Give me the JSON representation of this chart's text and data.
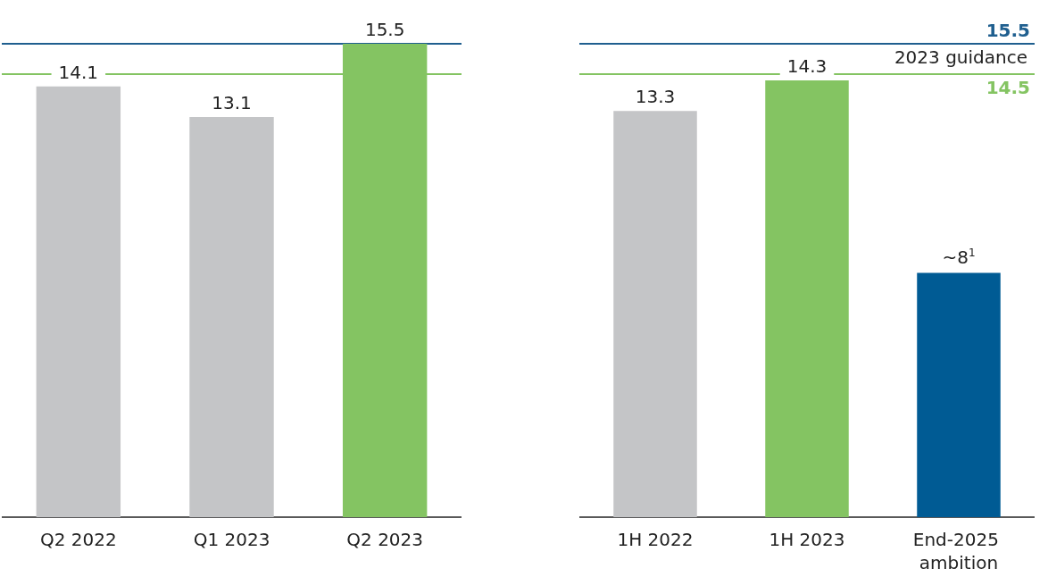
{
  "chart_data": [
    {
      "type": "bar",
      "categories": [
        "Q2 2022",
        "Q1 2023",
        "Q2 2023"
      ],
      "values": [
        14.1,
        13.1,
        15.5
      ],
      "colors": [
        "#c4c5c7",
        "#c4c5c7",
        "#84c462"
      ],
      "data_labels": true,
      "ylim": [
        0,
        15.5
      ],
      "grid": false,
      "ref_lines": [
        {
          "axis": "y",
          "value": 15.5,
          "label": null,
          "color": "#1f5f8f"
        },
        {
          "axis": "y",
          "value": 14.5,
          "label": null,
          "color": "#84c462"
        }
      ]
    },
    {
      "type": "bar",
      "categories": [
        "1H 2022",
        "1H 2023",
        "End-2025 ambition"
      ],
      "values": [
        13.3,
        14.3,
        8
      ],
      "colors": [
        "#c4c5c7",
        "#84c462",
        "#005b94"
      ],
      "value_labels": [
        "13.3",
        "14.3",
        "~8$^{1}$"
      ],
      "ylim": [
        0,
        15.5
      ],
      "grid": false,
      "ref_lines": [
        {
          "axis": "y",
          "value": 15.5,
          "label": "15.5",
          "color": "#1f5f8f"
        },
        {
          "axis": "y",
          "value": 14.5,
          "label": "14.5",
          "color": "#84c462"
        }
      ],
      "annotations": [
        "2023 guidance"
      ]
    }
  ]
}
